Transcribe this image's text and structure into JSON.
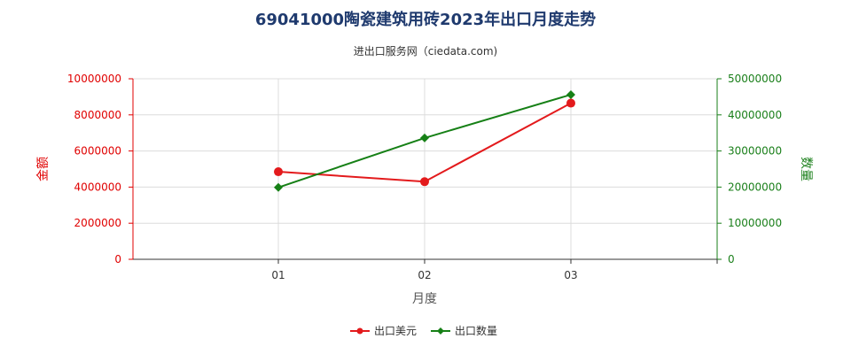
{
  "chart_data": {
    "type": "line",
    "title": "69041000陶瓷建筑用砖2023年出口月度走势",
    "subtitle": "进出口服务网（ciedata.com)",
    "xlabel": "月度",
    "ylabel_left": "金额",
    "ylabel_right": "数量",
    "categories": [
      "01",
      "02",
      "03"
    ],
    "ylim_left": [
      0,
      10000000
    ],
    "ylim_right": [
      0,
      50000000
    ],
    "yticks_left": [
      "0",
      "2000000",
      "4000000",
      "6000000",
      "8000000",
      "10000000"
    ],
    "yticks_right": [
      "0",
      "10000000",
      "20000000",
      "30000000",
      "40000000",
      "50000000"
    ],
    "grid": true,
    "legend_position": "bottom",
    "series": [
      {
        "name": "出口美元",
        "axis": "left",
        "color": "#e31a1c",
        "marker": "circle",
        "values": [
          4850000,
          4300000,
          8650000
        ]
      },
      {
        "name": "出口数量",
        "axis": "right",
        "color": "#168016",
        "marker": "diamond",
        "values": [
          19900000,
          33600000,
          45600000
        ]
      }
    ]
  }
}
